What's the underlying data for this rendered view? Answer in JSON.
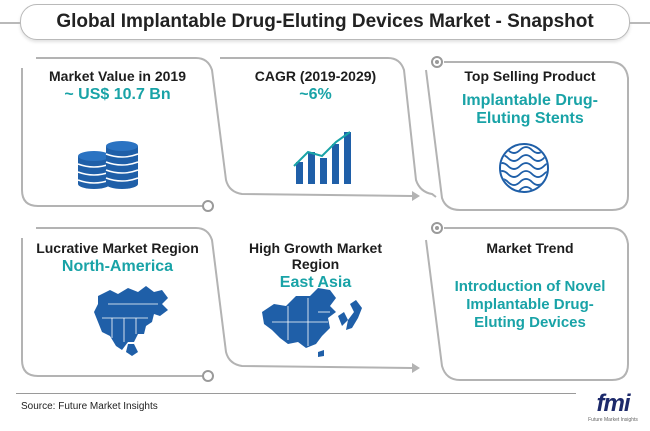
{
  "title": "Global Implantable Drug-Eluting Devices Market - Snapshot",
  "cards": {
    "market_value": {
      "label": "Market Value in 2019",
      "value": "~ US$ 10.7 Bn",
      "icon": "coin-stack-icon"
    },
    "cagr": {
      "label": "CAGR (2019-2029)",
      "value": "~6%",
      "icon": "growth-chart-icon"
    },
    "top_product": {
      "label": "Top Selling Product",
      "value_line1": "Implantable Drug-",
      "value_line2": "Eluting Stents",
      "icon": "stent-icon"
    },
    "lucrative_region": {
      "label": "Lucrative Market Region",
      "value": "North-America",
      "icon": "north-america-map-icon"
    },
    "growth_region": {
      "label": "High Growth Market Region",
      "value": "East Asia",
      "icon": "east-asia-map-icon"
    },
    "market_trend": {
      "label": "Market Trend",
      "value_line1": "Introduction of Novel",
      "value_line2": "Implantable Drug-",
      "value_line3": "Eluting Devices"
    }
  },
  "source": "Source: Future Market Insights",
  "logo": {
    "name": "fmi",
    "tagline": "Future Market Insights"
  },
  "colors": {
    "accent": "#19a3a7",
    "icon_blue": "#1f5fa8",
    "border": "#b9b9b9",
    "logo": "#1d2a6b"
  }
}
